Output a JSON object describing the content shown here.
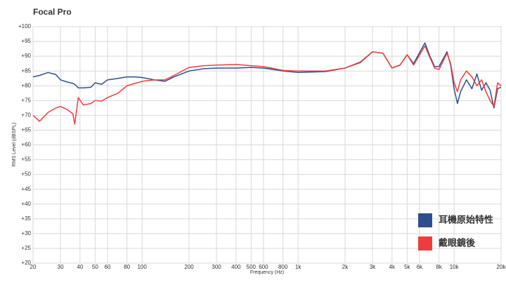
{
  "chart_data": {
    "type": "line",
    "title": "Focal Pro",
    "x_label": "Frequency (Hz)",
    "y_label": "RMS Level (dBSPL)",
    "xscale": "log",
    "grid": true,
    "legend": "lower right",
    "xlim": [
      20,
      20000
    ],
    "ylim": [
      20,
      100
    ],
    "xticks": [
      20,
      30,
      40,
      50,
      60,
      80,
      100,
      200,
      300,
      400,
      500,
      600,
      800,
      {
        "value": 1000,
        "label": "1k"
      },
      {
        "value": 2000,
        "label": "2k"
      },
      {
        "value": 3000,
        "label": "3k"
      },
      {
        "value": 4000,
        "label": "4k"
      },
      {
        "value": 5000,
        "label": "5k"
      },
      {
        "value": 6000,
        "label": "6k"
      },
      {
        "value": 8000,
        "label": "8k"
      },
      {
        "value": 10000,
        "label": "10k"
      },
      {
        "value": 20000,
        "label": "20k"
      }
    ],
    "yticks": [
      {
        "value": 20,
        "label": "+20"
      },
      {
        "value": 25,
        "label": "+25"
      },
      {
        "value": 30,
        "label": "+30"
      },
      {
        "value": 35,
        "label": "+35"
      },
      {
        "value": 40,
        "label": "+40"
      },
      {
        "value": 45,
        "label": "+45"
      },
      {
        "value": 50,
        "label": "+50"
      },
      {
        "value": 55,
        "label": "+55"
      },
      {
        "value": 60,
        "label": "+60"
      },
      {
        "value": 65,
        "label": "+65"
      },
      {
        "value": 70,
        "label": "+70"
      },
      {
        "value": 75,
        "label": "+75"
      },
      {
        "value": 80,
        "label": "+80"
      },
      {
        "value": 85,
        "label": "+85"
      },
      {
        "value": 90,
        "label": "+90"
      },
      {
        "value": 95,
        "label": "+95"
      },
      {
        "value": 100,
        "label": "+100"
      }
    ],
    "x": [
      20,
      22,
      25,
      28,
      30,
      33,
      36,
      37,
      39,
      42,
      47,
      50,
      55,
      60,
      70,
      80,
      90,
      100,
      120,
      140,
      160,
      200,
      250,
      300,
      400,
      500,
      600,
      800,
      1000,
      1500,
      2000,
      2500,
      3000,
      3500,
      4000,
      4500,
      5000,
      5500,
      6500,
      7000,
      7500,
      8000,
      9000,
      9500,
      10000,
      10500,
      11000,
      12000,
      13000,
      14000,
      15000,
      16000,
      17000,
      18000,
      19000,
      20000
    ],
    "series": [
      {
        "name": "耳機原始特性",
        "color": "#2e4f8f",
        "values": [
          83,
          83.5,
          84.5,
          83.8,
          82,
          81.3,
          80.8,
          80.5,
          79.3,
          79.3,
          79.5,
          81,
          80.5,
          82,
          82.5,
          83,
          83,
          82.8,
          82,
          81.5,
          83,
          85,
          85.8,
          86,
          86,
          86.2,
          86,
          85,
          84.5,
          84.8,
          86,
          88,
          91.5,
          91,
          86,
          87,
          90.5,
          87.5,
          94.5,
          90,
          86.5,
          86.5,
          91.5,
          87,
          79,
          74,
          78,
          82,
          79,
          84,
          78.5,
          81,
          78.5,
          72.5,
          79,
          79.5
        ]
      },
      {
        "name": "戴眼鏡後",
        "color": "#f03c3c",
        "values": [
          70,
          68,
          71,
          72.5,
          73,
          72,
          70.5,
          67,
          76,
          73.5,
          74,
          75,
          74.8,
          76,
          77.5,
          80,
          80.8,
          81.5,
          82,
          82,
          83.5,
          86.2,
          86.8,
          87,
          87.2,
          86.8,
          86.5,
          85.2,
          85,
          85,
          86,
          87.8,
          91.5,
          91,
          86,
          87,
          90.5,
          87,
          93.5,
          89.5,
          86,
          85.5,
          91,
          87.5,
          81,
          78,
          82,
          85,
          83,
          80,
          82,
          78,
          75,
          73,
          81,
          80
        ]
      }
    ]
  }
}
